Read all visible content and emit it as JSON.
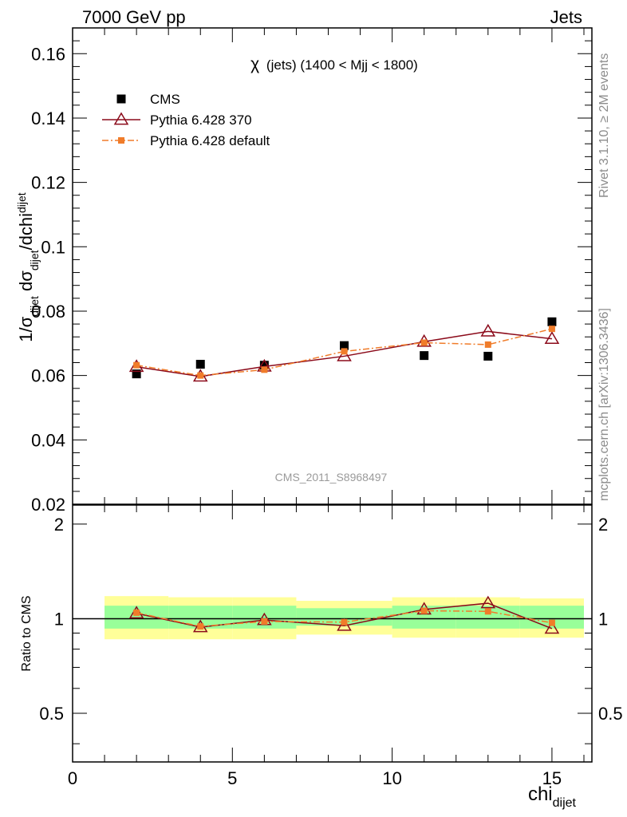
{
  "header": {
    "left": "7000 GeV pp",
    "right": "Jets"
  },
  "side_labels": {
    "rivet_prefix": "Rivet 3.1.10,",
    "rivet_geq": "≥",
    "rivet_suffix": "2M events",
    "source": "mcplots.cern.ch [arXiv:1306.3436]"
  },
  "watermark": "CMS_2011_S8968497",
  "chart_data": [
    {
      "type": "line",
      "title": "χ (jets) (1400 < Mjj < 1800)",
      "title_prefix": "χ",
      "title_rest": "(jets) (1400 < Mjj < 1800)",
      "ylabel_parts": {
        "a": "1/σ",
        "sub1": "dijet",
        "b": " dσ",
        "sub2": "dijet",
        "c": "/dchi",
        "sub3": "dijet"
      },
      "xlabel_main": "chi",
      "xlabel_sub": "dijet",
      "xlim": [
        0,
        16.25
      ],
      "ylim": [
        0.02,
        0.168
      ],
      "y_ticks": [
        "0.02",
        "0.04",
        "0.06",
        "0.08",
        "0.1",
        "0.12",
        "0.14",
        "0.16"
      ],
      "y_tick_values": [
        0.02,
        0.04,
        0.06,
        0.08,
        0.1,
        0.12,
        0.14,
        0.16
      ],
      "legend_position": "top-left",
      "series": [
        {
          "name": "CMS",
          "marker": "filled-square",
          "color": "#000000",
          "x": [
            2,
            4,
            6,
            8.5,
            11,
            13,
            15
          ],
          "y": [
            0.0605,
            0.0635,
            0.0632,
            0.0693,
            0.0662,
            0.066,
            0.0767
          ]
        },
        {
          "name": "Pythia 6.428 370",
          "marker": "open-triangle",
          "color": "#8b0a1a",
          "x": [
            2,
            4,
            6,
            8.5,
            11,
            13,
            15
          ],
          "y": [
            0.0627,
            0.0597,
            0.0628,
            0.066,
            0.0705,
            0.0737,
            0.0714
          ]
        },
        {
          "name": "Pythia 6.428 default",
          "marker": "filled-small-square",
          "color": "#f07c2a",
          "x": [
            2,
            4,
            6,
            8.5,
            11,
            13,
            15
          ],
          "y": [
            0.0632,
            0.06,
            0.0618,
            0.0675,
            0.0702,
            0.0696,
            0.0745
          ]
        }
      ]
    },
    {
      "type": "line",
      "ylabel": "Ratio to CMS",
      "xlim": [
        0,
        16.25
      ],
      "ylim": [
        0.35,
        2.3
      ],
      "y_ticks": [
        "0.5",
        "1",
        "2"
      ],
      "y_tick_values": [
        0.5,
        1,
        2
      ],
      "x_ticks": [
        "0",
        "5",
        "10",
        "15"
      ],
      "x_tick_values": [
        0,
        5,
        10,
        15
      ],
      "reference_line": 1,
      "bands": {
        "bin_edges": [
          1,
          3,
          5,
          7,
          10,
          12,
          14,
          16
        ],
        "inner_color": "#99ff99",
        "outer_color": "#ffff99",
        "inner": [
          [
            0.93,
            1.1
          ],
          [
            0.93,
            1.1
          ],
          [
            0.93,
            1.1
          ],
          [
            0.95,
            1.08
          ],
          [
            0.93,
            1.1
          ],
          [
            0.93,
            1.1
          ],
          [
            0.93,
            1.1
          ]
        ],
        "outer": [
          [
            0.86,
            1.18
          ],
          [
            0.86,
            1.17
          ],
          [
            0.86,
            1.17
          ],
          [
            0.89,
            1.14
          ],
          [
            0.87,
            1.17
          ],
          [
            0.87,
            1.17
          ],
          [
            0.87,
            1.16
          ]
        ]
      },
      "series": [
        {
          "name": "Pythia 6.428 370",
          "marker": "open-triangle",
          "color": "#8b0a1a",
          "x": [
            2,
            4,
            6,
            8.5,
            11,
            13,
            15
          ],
          "y": [
            1.04,
            0.94,
            0.99,
            0.95,
            1.07,
            1.12,
            0.93
          ]
        },
        {
          "name": "Pythia 6.428 default",
          "marker": "filled-small-square",
          "color": "#f07c2a",
          "x": [
            2,
            4,
            6,
            8.5,
            11,
            13,
            15
          ],
          "y": [
            1.045,
            0.945,
            0.98,
            0.975,
            1.06,
            1.055,
            0.97
          ]
        }
      ]
    }
  ]
}
